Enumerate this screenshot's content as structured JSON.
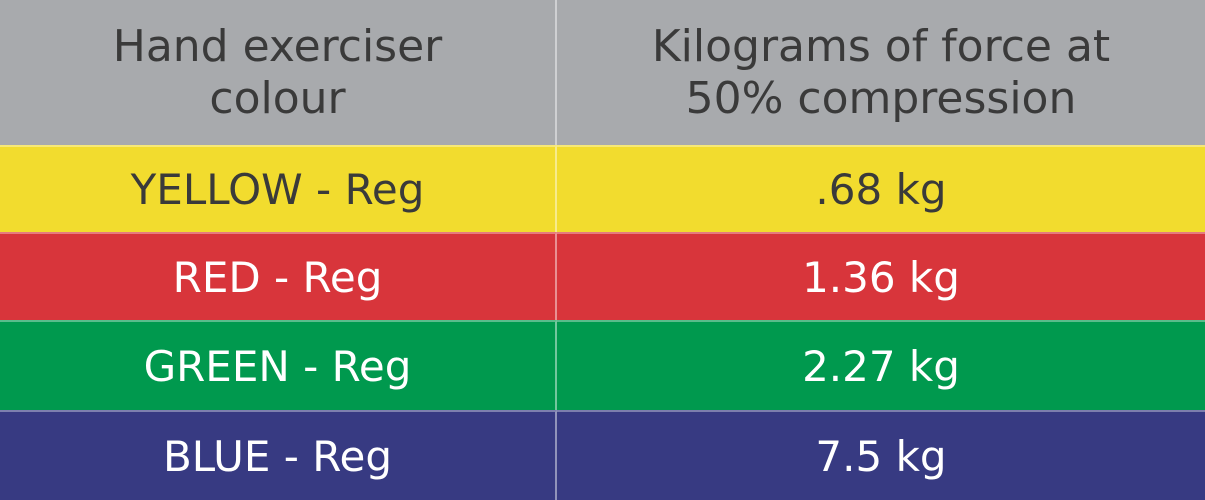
{
  "table": {
    "header": [
      [
        "Hand exerciser",
        "colour"
      ],
      [
        "Kilograms of force at",
        "50% compression"
      ]
    ],
    "rows": [
      [
        "YELLOW - Reg",
        ".68 kg"
      ],
      [
        "RED - Reg",
        "1.36 kg"
      ],
      [
        "GREEN - Reg",
        "2.27 kg"
      ],
      [
        "BLUE - Reg",
        "7.5 kg"
      ]
    ],
    "row_colors": [
      "#f2dc2e",
      "#d8353b",
      "#00994e",
      "#373a82"
    ],
    "text_colors": [
      "#3a3a3a",
      "#ffffff",
      "#ffffff",
      "#ffffff"
    ]
  }
}
